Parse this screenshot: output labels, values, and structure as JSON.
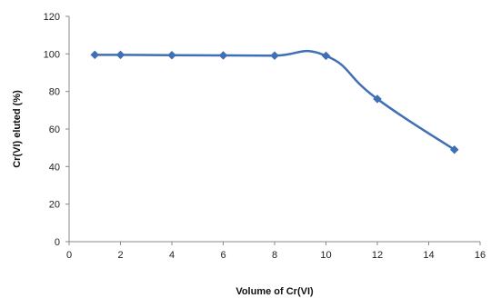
{
  "chart_data": {
    "type": "line",
    "title": "",
    "xlabel": "Volume of Cr(VI)",
    "ylabel": "Cr(VI) eluted (%)",
    "xlim": [
      0,
      16
    ],
    "ylim": [
      0,
      120
    ],
    "x_ticks": [
      "0",
      "2",
      "4",
      "6",
      "8",
      "10",
      "12",
      "14",
      "16"
    ],
    "y_ticks": [
      "0",
      "20",
      "40",
      "60",
      "80",
      "100",
      "120"
    ],
    "grid": false,
    "legend": "none",
    "series": [
      {
        "color": "#3F6FB5",
        "marker": "diamond",
        "smooth": true,
        "x": [
          1,
          2,
          4,
          6,
          8,
          10,
          12,
          15
        ],
        "y": [
          99.5,
          99.5,
          99.3,
          99.2,
          99.1,
          99,
          76,
          49
        ]
      }
    ]
  }
}
